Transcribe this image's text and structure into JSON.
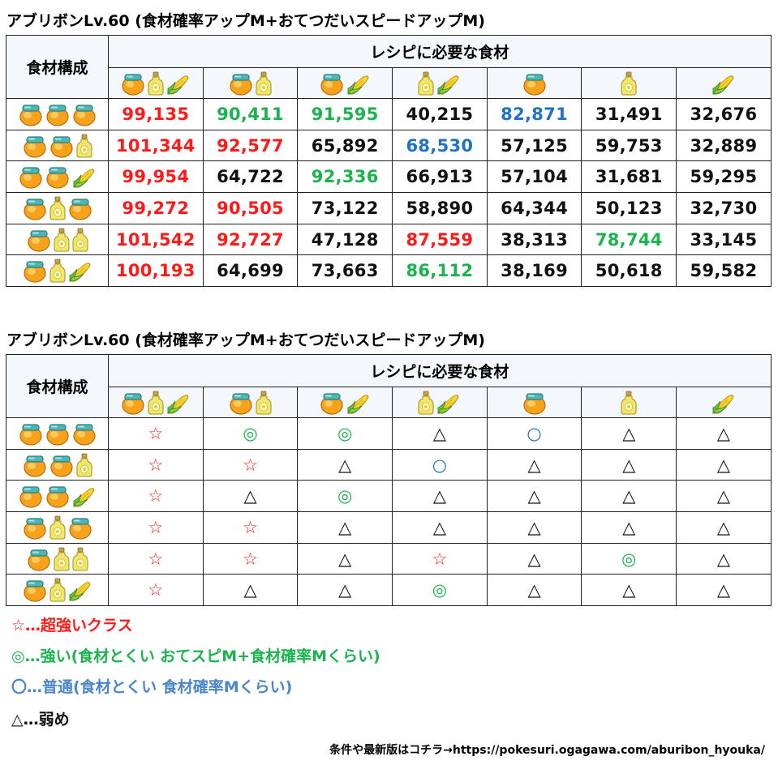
{
  "tables": [
    {
      "title": "アブリボンLv.60 (食材確率アップM+おてつだいスピードアップM)",
      "combo_header": "食材構成",
      "recipe_header": "レシピに必要な食材",
      "columns": [
        [
          "honey",
          "oil",
          "corn"
        ],
        [
          "honey",
          "oil"
        ],
        [
          "honey",
          "corn"
        ],
        [
          "oil",
          "corn"
        ],
        [
          "honey"
        ],
        [
          "oil"
        ],
        [
          "corn"
        ]
      ],
      "rows": [
        {
          "combo": [
            "honey",
            "honey",
            "honey"
          ],
          "cells": [
            {
              "text": "99,135",
              "color": "red"
            },
            {
              "text": "90,411",
              "color": "green"
            },
            {
              "text": "91,595",
              "color": "green"
            },
            {
              "text": "40,215",
              "color": "black"
            },
            {
              "text": "82,871",
              "color": "blue"
            },
            {
              "text": "31,491",
              "color": "black"
            },
            {
              "text": "32,676",
              "color": "black"
            }
          ]
        },
        {
          "combo": [
            "honey",
            "honey",
            "oil"
          ],
          "cells": [
            {
              "text": "101,344",
              "color": "red"
            },
            {
              "text": "92,577",
              "color": "red"
            },
            {
              "text": "65,892",
              "color": "black"
            },
            {
              "text": "68,530",
              "color": "blue"
            },
            {
              "text": "57,125",
              "color": "black"
            },
            {
              "text": "59,753",
              "color": "black"
            },
            {
              "text": "32,889",
              "color": "black"
            }
          ]
        },
        {
          "combo": [
            "honey",
            "honey",
            "corn"
          ],
          "cells": [
            {
              "text": "99,954",
              "color": "red"
            },
            {
              "text": "64,722",
              "color": "black"
            },
            {
              "text": "92,336",
              "color": "green"
            },
            {
              "text": "66,913",
              "color": "black"
            },
            {
              "text": "57,104",
              "color": "black"
            },
            {
              "text": "31,681",
              "color": "black"
            },
            {
              "text": "59,295",
              "color": "black"
            }
          ]
        },
        {
          "combo": [
            "honey",
            "oil",
            "honey"
          ],
          "cells": [
            {
              "text": "99,272",
              "color": "red"
            },
            {
              "text": "90,505",
              "color": "red"
            },
            {
              "text": "73,122",
              "color": "black"
            },
            {
              "text": "58,890",
              "color": "black"
            },
            {
              "text": "64,344",
              "color": "black"
            },
            {
              "text": "50,123",
              "color": "black"
            },
            {
              "text": "32,730",
              "color": "black"
            }
          ]
        },
        {
          "combo": [
            "honey",
            "oil",
            "oil"
          ],
          "cells": [
            {
              "text": "101,542",
              "color": "red"
            },
            {
              "text": "92,727",
              "color": "red"
            },
            {
              "text": "47,128",
              "color": "black"
            },
            {
              "text": "87,559",
              "color": "red"
            },
            {
              "text": "38,313",
              "color": "black"
            },
            {
              "text": "78,744",
              "color": "green"
            },
            {
              "text": "33,145",
              "color": "black"
            }
          ]
        },
        {
          "combo": [
            "honey",
            "oil",
            "corn"
          ],
          "cells": [
            {
              "text": "100,193",
              "color": "red"
            },
            {
              "text": "64,699",
              "color": "black"
            },
            {
              "text": "73,663",
              "color": "black"
            },
            {
              "text": "86,112",
              "color": "green"
            },
            {
              "text": "38,169",
              "color": "black"
            },
            {
              "text": "50,618",
              "color": "black"
            },
            {
              "text": "59,582",
              "color": "black"
            }
          ]
        }
      ]
    },
    {
      "title": "アブリボンLv.60 (食材確率アップM+おてつだいスピードアップM)",
      "combo_header": "食材構成",
      "recipe_header": "レシピに必要な食材",
      "columns": [
        [
          "honey",
          "oil",
          "corn"
        ],
        [
          "honey",
          "oil"
        ],
        [
          "honey",
          "corn"
        ],
        [
          "oil",
          "corn"
        ],
        [
          "honey"
        ],
        [
          "oil"
        ],
        [
          "corn"
        ]
      ],
      "rows": [
        {
          "combo": [
            "honey",
            "honey",
            "honey"
          ],
          "cells": [
            {
              "text": "☆",
              "color": "red"
            },
            {
              "text": "◎",
              "color": "green"
            },
            {
              "text": "◎",
              "color": "green"
            },
            {
              "text": "△",
              "color": "black"
            },
            {
              "text": "○",
              "color": "blue"
            },
            {
              "text": "△",
              "color": "black"
            },
            {
              "text": "△",
              "color": "black"
            }
          ]
        },
        {
          "combo": [
            "honey",
            "honey",
            "oil"
          ],
          "cells": [
            {
              "text": "☆",
              "color": "red"
            },
            {
              "text": "☆",
              "color": "red"
            },
            {
              "text": "△",
              "color": "black"
            },
            {
              "text": "○",
              "color": "blue"
            },
            {
              "text": "△",
              "color": "black"
            },
            {
              "text": "△",
              "color": "black"
            },
            {
              "text": "△",
              "color": "black"
            }
          ]
        },
        {
          "combo": [
            "honey",
            "honey",
            "corn"
          ],
          "cells": [
            {
              "text": "☆",
              "color": "red"
            },
            {
              "text": "△",
              "color": "black"
            },
            {
              "text": "◎",
              "color": "green"
            },
            {
              "text": "△",
              "color": "black"
            },
            {
              "text": "△",
              "color": "black"
            },
            {
              "text": "△",
              "color": "black"
            },
            {
              "text": "△",
              "color": "black"
            }
          ]
        },
        {
          "combo": [
            "honey",
            "oil",
            "honey"
          ],
          "cells": [
            {
              "text": "☆",
              "color": "red"
            },
            {
              "text": "☆",
              "color": "red"
            },
            {
              "text": "△",
              "color": "black"
            },
            {
              "text": "△",
              "color": "black"
            },
            {
              "text": "△",
              "color": "black"
            },
            {
              "text": "△",
              "color": "black"
            },
            {
              "text": "△",
              "color": "black"
            }
          ]
        },
        {
          "combo": [
            "honey",
            "oil",
            "oil"
          ],
          "cells": [
            {
              "text": "☆",
              "color": "red"
            },
            {
              "text": "☆",
              "color": "red"
            },
            {
              "text": "△",
              "color": "black"
            },
            {
              "text": "☆",
              "color": "red"
            },
            {
              "text": "△",
              "color": "black"
            },
            {
              "text": "◎",
              "color": "green"
            },
            {
              "text": "△",
              "color": "black"
            }
          ]
        },
        {
          "combo": [
            "honey",
            "oil",
            "corn"
          ],
          "cells": [
            {
              "text": "☆",
              "color": "red"
            },
            {
              "text": "△",
              "color": "black"
            },
            {
              "text": "△",
              "color": "black"
            },
            {
              "text": "◎",
              "color": "green"
            },
            {
              "text": "△",
              "color": "black"
            },
            {
              "text": "△",
              "color": "black"
            },
            {
              "text": "△",
              "color": "black"
            }
          ]
        }
      ]
    }
  ],
  "legend": [
    {
      "text": "☆…超強いクラス",
      "color": "red"
    },
    {
      "text": "◎…強い(食材とくい おてスピM+食材確率Mくらい)",
      "color": "green"
    },
    {
      "text": "〇…普通(食材とくい 食材確率Mくらい)",
      "color": "steelblue"
    },
    {
      "text": "△…弱め",
      "color": "black"
    }
  ],
  "footer": "条件や最新版はコチラ→https://pokesuri.ogagawa.com/aburibon_hyouka/",
  "colors": {
    "red": "#ff1a1a",
    "green": "#1ab34d",
    "blue": "#1f73c6",
    "steelblue": "#4a86c8",
    "black": "#111111",
    "header_bg": "#f4f7fb"
  },
  "icons": {
    "honey": "honey-jar-icon",
    "oil": "oil-bottle-icon",
    "corn": "corn-icon"
  }
}
